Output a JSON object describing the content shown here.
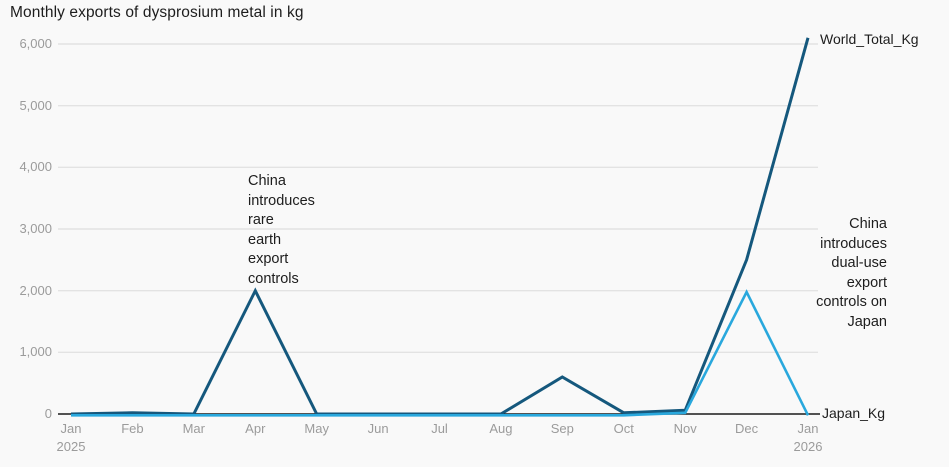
{
  "colors": {
    "background": "#f9f9f9",
    "grid": "#e3e3e3",
    "axis": "#1a1a1a",
    "tick_text": "#9b9b9b",
    "text": "#1d1d1d",
    "world_line": "#15587d",
    "japan_line": "#29a8dd"
  },
  "chart_data": {
    "type": "line",
    "title": "Monthly exports of dysprosium metal in kg",
    "xlabel": "",
    "ylabel": "",
    "grid": true,
    "legend_position": "end-of-line-labels",
    "ylim": [
      0,
      6000
    ],
    "y_ticks": [
      0,
      1000,
      2000,
      3000,
      4000,
      5000,
      6000
    ],
    "y_tick_labels": [
      "0",
      "1,000",
      "2,000",
      "3,000",
      "4,000",
      "5,000",
      "6,000"
    ],
    "x": [
      "Jan 2025",
      "Feb",
      "Mar",
      "Apr",
      "May",
      "Jun",
      "Jul",
      "Aug",
      "Sep",
      "Oct",
      "Nov",
      "Dec",
      "Jan 2026"
    ],
    "x_tick_labels": [
      {
        "label": "Jan",
        "sub": "2025"
      },
      {
        "label": "Feb"
      },
      {
        "label": "Mar"
      },
      {
        "label": "Apr"
      },
      {
        "label": "May"
      },
      {
        "label": "Jun"
      },
      {
        "label": "Jul"
      },
      {
        "label": "Aug"
      },
      {
        "label": "Sep"
      },
      {
        "label": "Oct"
      },
      {
        "label": "Nov"
      },
      {
        "label": "Dec"
      },
      {
        "label": "Jan",
        "sub": "2026"
      }
    ],
    "series": [
      {
        "name": "World_Total_Kg",
        "color": "#15587d",
        "values": [
          0,
          20,
          0,
          2000,
          0,
          0,
          0,
          0,
          600,
          20,
          60,
          2500,
          6100
        ]
      },
      {
        "name": "Japan_Kg",
        "color": "#29a8dd",
        "values": [
          0,
          0,
          0,
          0,
          0,
          0,
          0,
          0,
          0,
          0,
          40,
          2000,
          0
        ]
      }
    ],
    "annotations": [
      {
        "text": "China\nintroduces\nrare\nearth\nexport\ncontrols"
      },
      {
        "text": "China\nintroduces\ndual-use\nexport\ncontrols on\nJapan"
      }
    ]
  }
}
